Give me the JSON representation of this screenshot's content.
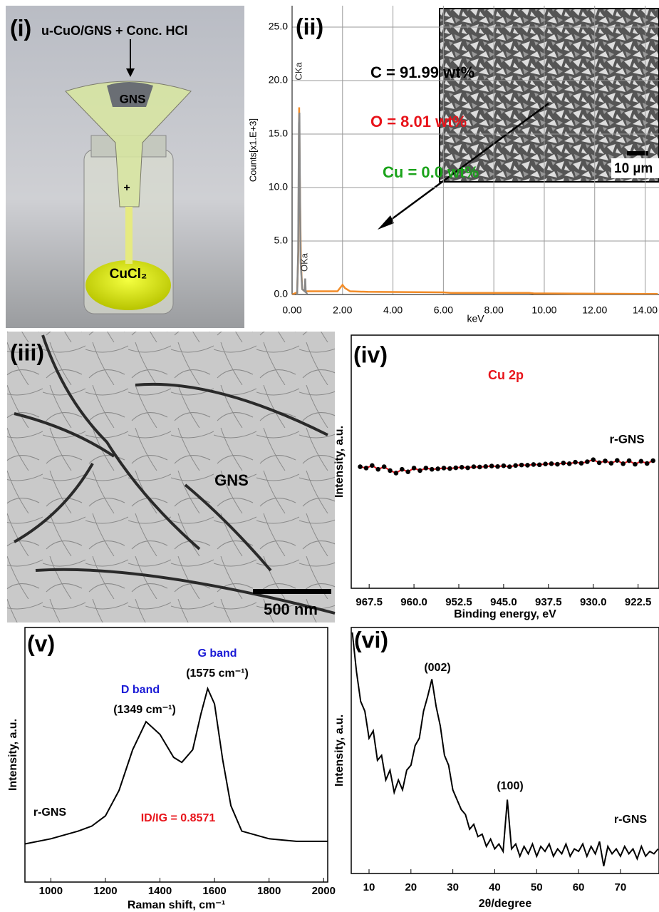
{
  "panels": {
    "i": {
      "label": "(i)",
      "caption": "u-CuO/GNS + Conc. HCl",
      "funnel_label": "GNS",
      "marker": "+",
      "solution": "CuCl₂"
    },
    "iii": {
      "label": "(iii)",
      "text": "GNS",
      "scale": "500 nm"
    }
  },
  "chart_data": [
    {
      "type": "line",
      "label": "(ii)",
      "xlabel": "keV",
      "ylabel": "Counts[x1.E+3]",
      "xlim": [
        0,
        14.55
      ],
      "ylim": [
        0,
        27
      ],
      "grid": true,
      "xticks": [
        {
          "value": 0,
          "label": "0.00"
        },
        {
          "value": 2,
          "label": "2.00"
        },
        {
          "value": 4,
          "label": "4.00"
        },
        {
          "value": 6,
          "label": "6.00"
        },
        {
          "value": 8,
          "label": "8.00"
        },
        {
          "value": 10,
          "label": "10.00"
        },
        {
          "value": 12,
          "label": "12.00"
        },
        {
          "value": 14,
          "label": "14.00"
        }
      ],
      "yticks": [
        {
          "value": 0,
          "label": "0.0"
        },
        {
          "value": 5,
          "label": "5.0"
        },
        {
          "value": 10,
          "label": "10.0"
        },
        {
          "value": 15,
          "label": "15.0"
        },
        {
          "value": 20,
          "label": "20.0"
        },
        {
          "value": 25,
          "label": "25.0"
        }
      ],
      "series": [
        {
          "color": "#f28c28",
          "x": [
            0,
            0.2,
            0.25,
            0.28,
            0.3,
            0.35,
            0.4,
            0.5,
            0.6,
            1.0,
            1.8,
            2.0,
            2.1,
            2.3,
            3,
            6,
            6.3,
            9.4,
            9.6,
            14.5
          ],
          "values": [
            0,
            0.2,
            4,
            17.5,
            12,
            3,
            0.5,
            0.3,
            0.3,
            0.3,
            0.3,
            0.9,
            0.6,
            0.3,
            0.25,
            0.2,
            0.15,
            0.15,
            0.1,
            0.05
          ]
        },
        {
          "color": "#888888",
          "x": [
            0.2,
            0.24,
            0.27,
            0.29,
            0.31,
            0.34,
            0.4,
            0.5,
            0.52,
            0.54,
            0.6
          ],
          "values": [
            0,
            4,
            16,
            17,
            10,
            3,
            0.5,
            0.3,
            1.5,
            0.3,
            0
          ]
        }
      ],
      "annotations": [
        {
          "text": "CKa",
          "color": "#333333"
        },
        {
          "text": "OKa",
          "color": "#333333"
        },
        {
          "text": "C = 91.99 wt%",
          "color": "#000000"
        },
        {
          "text": "O = 8.01 wt%",
          "color": "#e8141b"
        },
        {
          "text": "Cu = 0.0 wt%",
          "color": "#1aa31a"
        }
      ],
      "inset_scale": "10 µm"
    },
    {
      "type": "scatter",
      "label": "(iv)",
      "xlabel": "Binding energy, eV",
      "ylabel": "Intensity, a.u.",
      "xlim": [
        970.5,
        919
      ],
      "ylim": [
        0,
        100
      ],
      "grid": false,
      "xticks": [
        967.5,
        {
          "value": 960,
          "label": "960.0"
        },
        952.5,
        {
          "value": 945,
          "label": "945.0"
        },
        937.5,
        {
          "value": 930,
          "label": "930.0"
        },
        922.5
      ],
      "yticks": [],
      "line_color": "#e8141b",
      "series": [
        {
          "color": "#000000",
          "x": [
            969,
            968,
            967,
            966,
            965,
            964,
            963,
            962,
            961,
            960,
            959,
            958,
            957,
            956,
            955,
            954,
            953,
            952,
            951,
            950,
            949,
            948,
            947,
            946,
            945,
            944,
            943,
            942,
            941,
            940,
            939,
            938,
            937,
            936,
            935,
            934,
            933,
            932,
            931,
            930,
            929,
            928,
            927,
            926,
            925,
            924,
            923,
            922,
            921,
            920
          ],
          "values": [
            48,
            47.5,
            48.5,
            47,
            48,
            46.5,
            45.5,
            47,
            46,
            47.5,
            46.5,
            47.5,
            47,
            47.2,
            47.5,
            47.3,
            47.6,
            47.8,
            47.6,
            48,
            47.9,
            48.1,
            48.3,
            48.1,
            48.4,
            48,
            48.5,
            48.7,
            48.6,
            48.9,
            48.8,
            49.1,
            49.2,
            49,
            49.5,
            49.2,
            49.8,
            49.4,
            50,
            50.8,
            49.6,
            50.3,
            49.4,
            50.5,
            49.2,
            50.4,
            49,
            50.2,
            49.3,
            50.4
          ]
        }
      ],
      "annotations": [
        {
          "text": "Cu 2p",
          "color": "#e8141b"
        },
        {
          "text": "r-GNS",
          "color": "#000000"
        }
      ]
    },
    {
      "type": "line",
      "label": "(v)",
      "xlabel": "Raman shift, cm⁻¹",
      "ylabel": "Intensity, a.u.",
      "xlim": [
        905,
        2015
      ],
      "ylim": [
        0,
        100
      ],
      "grid": false,
      "xticks": [
        1000,
        1200,
        1400,
        1600,
        1800,
        2000
      ],
      "yticks": [],
      "series": [
        {
          "color": "#000000",
          "x": [
            905,
            1000,
            1100,
            1150,
            1200,
            1250,
            1300,
            1349,
            1400,
            1450,
            1480,
            1520,
            1550,
            1575,
            1600,
            1630,
            1660,
            1700,
            1800,
            1900,
            2015
          ],
          "values": [
            15,
            17,
            20,
            22,
            26,
            36,
            52,
            63,
            58,
            49,
            47,
            52,
            66,
            76,
            70,
            48,
            30,
            20,
            17,
            16,
            16
          ]
        }
      ],
      "annotations": [
        {
          "text": "D band",
          "color": "#1a1ad6"
        },
        {
          "text": "(1349 cm⁻¹)",
          "color": "#000000"
        },
        {
          "text": "G band",
          "color": "#1a1ad6"
        },
        {
          "text": "(1575 cm⁻¹)",
          "color": "#000000"
        },
        {
          "text": "ID/IG = 0.8571",
          "color": "#e8141b"
        },
        {
          "text": "r-GNS",
          "color": "#000000"
        }
      ]
    },
    {
      "type": "line",
      "label": "(vi)",
      "xlabel": "2θ/degree",
      "ylabel": "Intensity, a.u.",
      "xlim": [
        5.75,
        79.2
      ],
      "ylim": [
        0,
        100
      ],
      "grid": false,
      "xticks": [
        10,
        20,
        30,
        40,
        50,
        60,
        70
      ],
      "yticks": [],
      "series": [
        {
          "color": "#000000",
          "x": [
            6,
            7,
            8,
            9,
            10,
            11,
            12,
            13,
            14,
            15,
            16,
            17,
            18,
            19,
            20,
            21,
            22,
            23,
            24,
            25,
            26,
            27,
            28,
            29,
            30,
            31,
            32,
            33,
            34,
            35,
            36,
            37,
            38,
            39,
            40,
            41,
            42,
            43,
            44,
            45,
            46,
            47,
            48,
            49,
            50,
            51,
            52,
            53,
            54,
            55,
            56,
            57,
            58,
            59,
            60,
            61,
            62,
            63,
            64,
            65,
            66,
            67,
            68,
            69,
            70,
            71,
            72,
            73,
            74,
            75,
            76,
            77,
            78,
            79
          ],
          "values": [
            98,
            82,
            70,
            66,
            55,
            58,
            46,
            48,
            38,
            42,
            33,
            38,
            34,
            42,
            44,
            52,
            55,
            66,
            72,
            79,
            68,
            60,
            48,
            44,
            34,
            30,
            26,
            24,
            18,
            20,
            15,
            16,
            11,
            14,
            10,
            12,
            9,
            30,
            10,
            12,
            7,
            11,
            8,
            12,
            7,
            11,
            9,
            12,
            7,
            10,
            8,
            12,
            7,
            10,
            9,
            12,
            7,
            11,
            8,
            13,
            3,
            11,
            8,
            10,
            7,
            11,
            8,
            10,
            6,
            11,
            7,
            9,
            8,
            10
          ]
        }
      ],
      "annotations": [
        {
          "text": "(002)",
          "color": "#000000"
        },
        {
          "text": "(100)",
          "color": "#000000"
        },
        {
          "text": "r-GNS",
          "color": "#000000"
        }
      ]
    }
  ]
}
